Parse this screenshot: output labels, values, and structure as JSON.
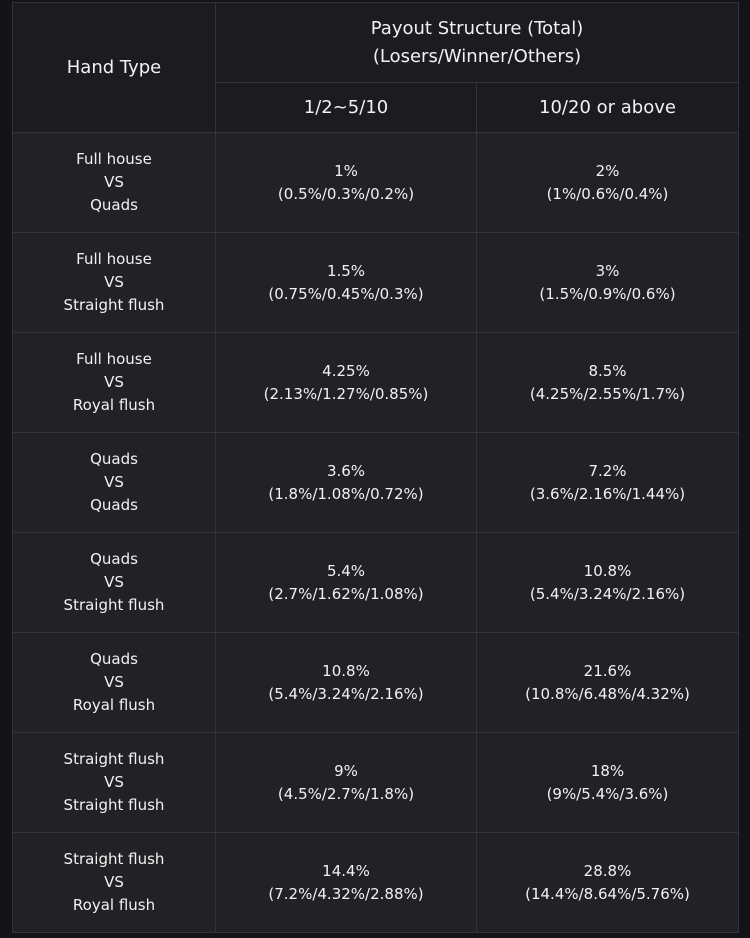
{
  "header": {
    "hand_type": "Hand Type",
    "payout_title_line1": "Payout Structure (Total)",
    "payout_title_line2": "(Losers/Winner/Others)",
    "stakes_low": "1/2~5/10",
    "stakes_high": "10/20 or above"
  },
  "rows": [
    {
      "hand1": "Full house",
      "vs": "VS",
      "hand2": "Quads",
      "low_total": "1%",
      "low_split": "(0.5%/0.3%/0.2%)",
      "high_total": "2%",
      "high_split": "(1%/0.6%/0.4%)"
    },
    {
      "hand1": "Full house",
      "vs": "VS",
      "hand2": "Straight flush",
      "low_total": "1.5%",
      "low_split": "(0.75%/0.45%/0.3%)",
      "high_total": "3%",
      "high_split": "(1.5%/0.9%/0.6%)"
    },
    {
      "hand1": "Full house",
      "vs": "VS",
      "hand2": "Royal flush",
      "low_total": "4.25%",
      "low_split": "(2.13%/1.27%/0.85%)",
      "high_total": "8.5%",
      "high_split": "(4.25%/2.55%/1.7%)"
    },
    {
      "hand1": "Quads",
      "vs": "VS",
      "hand2": "Quads",
      "low_total": "3.6%",
      "low_split": "(1.8%/1.08%/0.72%)",
      "high_total": "7.2%",
      "high_split": "(3.6%/2.16%/1.44%)"
    },
    {
      "hand1": "Quads",
      "vs": "VS",
      "hand2": "Straight flush",
      "low_total": "5.4%",
      "low_split": "(2.7%/1.62%/1.08%)",
      "high_total": "10.8%",
      "high_split": "(5.4%/3.24%/2.16%)"
    },
    {
      "hand1": "Quads",
      "vs": "VS",
      "hand2": "Royal flush",
      "low_total": "10.8%",
      "low_split": "(5.4%/3.24%/2.16%)",
      "high_total": "21.6%",
      "high_split": "(10.8%/6.48%/4.32%)"
    },
    {
      "hand1": "Straight flush",
      "vs": "VS",
      "hand2": "Straight flush",
      "low_total": "9%",
      "low_split": "(4.5%/2.7%/1.8%)",
      "high_total": "18%",
      "high_split": "(9%/5.4%/3.6%)"
    },
    {
      "hand1": "Straight flush",
      "vs": "VS",
      "hand2": "Royal flush",
      "low_total": "14.4%",
      "low_split": "(7.2%/4.32%/2.88%)",
      "high_total": "28.8%",
      "high_split": "(14.4%/8.64%/5.76%)"
    }
  ],
  "colors": {
    "page_background": "#141418",
    "header_background": "#1c1c20",
    "cell_background": "#222226",
    "border": "#34343a",
    "text": "#f2f2f2"
  }
}
